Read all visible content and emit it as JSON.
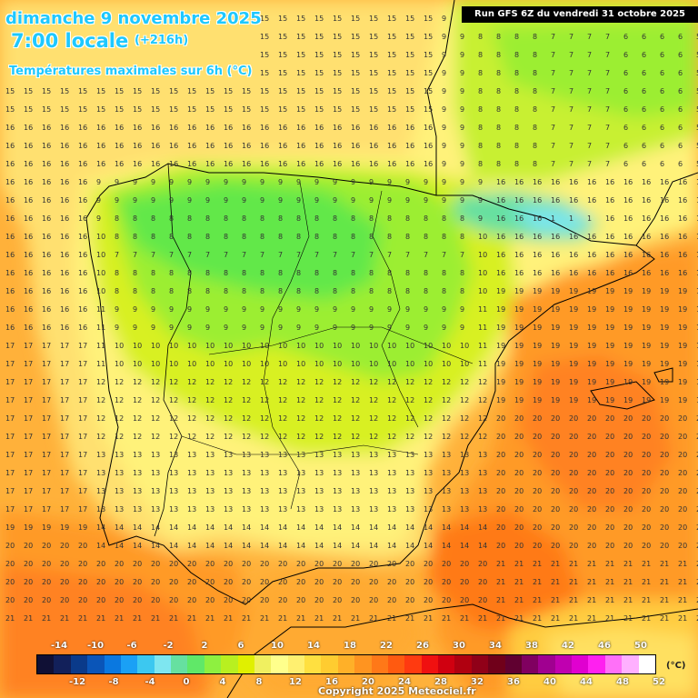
{
  "header": {
    "date_line": "dimanche 9 novembre 2025",
    "time_line": "7:00 locale",
    "offset": "(+216h)",
    "parameter": "Températures maximales sur 6h (°C)",
    "run_info": "Run GFS 6Z du vendredi 31 octobre 2025"
  },
  "legend": {
    "unit": "(°C)",
    "upper_ticks": [
      "-14",
      "-10",
      "-6",
      "-2",
      "2",
      "6",
      "10",
      "14",
      "18",
      "22",
      "26",
      "30",
      "34",
      "38",
      "42",
      "46",
      "50"
    ],
    "lower_ticks": [
      "-12",
      "-8",
      "-4",
      "0",
      "4",
      "8",
      "12",
      "16",
      "20",
      "24",
      "28",
      "32",
      "36",
      "40",
      "44",
      "48",
      "52"
    ],
    "colors": [
      "#101035",
      "#12205a",
      "#0a3a8a",
      "#0a55b8",
      "#0a78e0",
      "#1aa0f5",
      "#3cc8f0",
      "#7ee6f0",
      "#66e0a0",
      "#60e868",
      "#8ef040",
      "#b8f020",
      "#e0f000",
      "#f0f060",
      "#ffff8c",
      "#fff070",
      "#ffe040",
      "#ffcc30",
      "#ffb028",
      "#ff9420",
      "#ff7818",
      "#ff5a10",
      "#ff3a10",
      "#f01010",
      "#d00010",
      "#b00010",
      "#900018",
      "#70001a",
      "#600030",
      "#800060",
      "#a00090",
      "#c000b0",
      "#e000d0",
      "#ff20f0",
      "#ff70f8",
      "#ffb0ff",
      "#ffffff"
    ]
  },
  "credit": "Copyright 2025 Meteociel.fr"
}
